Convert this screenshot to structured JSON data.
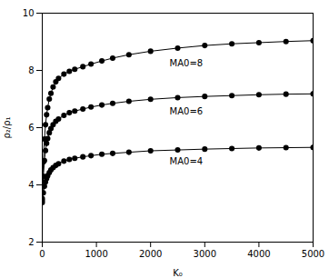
{
  "chart_data": {
    "type": "line",
    "xlabel": "K₀",
    "ylabel": "ρ₂/ρ₁",
    "xlim": [
      0,
      5000
    ],
    "ylim": [
      2,
      10
    ],
    "xticks": [
      0,
      1000,
      2000,
      3000,
      4000,
      5000
    ],
    "yticks": [
      2,
      4,
      6,
      8,
      10
    ],
    "grid": false,
    "marker": "o",
    "series": [
      {
        "name": "MA0=8",
        "color": "black",
        "x": [
          0,
          20,
          40,
          60,
          80,
          100,
          130,
          160,
          200,
          250,
          300,
          400,
          500,
          600,
          750,
          900,
          1100,
          1300,
          1600,
          2000,
          2500,
          3000,
          3500,
          4000,
          4500,
          5000
        ],
        "values": [
          3.52,
          4.8,
          5.6,
          6.1,
          6.45,
          6.7,
          7.0,
          7.2,
          7.42,
          7.6,
          7.72,
          7.87,
          7.97,
          8.04,
          8.13,
          8.22,
          8.33,
          8.43,
          8.55,
          8.67,
          8.78,
          8.87,
          8.93,
          8.97,
          9.01,
          9.04
        ]
      },
      {
        "name": "MA0=6",
        "color": "black",
        "x": [
          0,
          20,
          40,
          60,
          80,
          100,
          130,
          160,
          200,
          250,
          300,
          400,
          500,
          600,
          750,
          900,
          1100,
          1300,
          1600,
          2000,
          2500,
          3000,
          3500,
          4000,
          4500,
          5000
        ],
        "values": [
          3.45,
          4.3,
          4.85,
          5.2,
          5.45,
          5.62,
          5.82,
          5.97,
          6.1,
          6.22,
          6.3,
          6.43,
          6.52,
          6.58,
          6.65,
          6.72,
          6.79,
          6.85,
          6.92,
          6.99,
          7.05,
          7.09,
          7.12,
          7.15,
          7.17,
          7.18
        ]
      },
      {
        "name": "MA0=4",
        "color": "black",
        "x": [
          0,
          20,
          40,
          60,
          80,
          100,
          130,
          160,
          200,
          250,
          300,
          400,
          500,
          600,
          750,
          900,
          1100,
          1300,
          1600,
          2000,
          2500,
          3000,
          3500,
          4000,
          4500,
          5000
        ],
        "values": [
          3.38,
          3.72,
          3.95,
          4.1,
          4.22,
          4.32,
          4.43,
          4.52,
          4.6,
          4.68,
          4.74,
          4.83,
          4.89,
          4.93,
          4.98,
          5.02,
          5.07,
          5.1,
          5.14,
          5.19,
          5.22,
          5.25,
          5.27,
          5.29,
          5.3,
          5.31
        ]
      }
    ],
    "annotations": [
      {
        "text": "MA0=8",
        "x": 2350,
        "y": 8.25
      },
      {
        "text": "MA0=6",
        "x": 2350,
        "y": 6.55
      },
      {
        "text": "MA0=4",
        "x": 2350,
        "y": 4.82
      }
    ]
  }
}
